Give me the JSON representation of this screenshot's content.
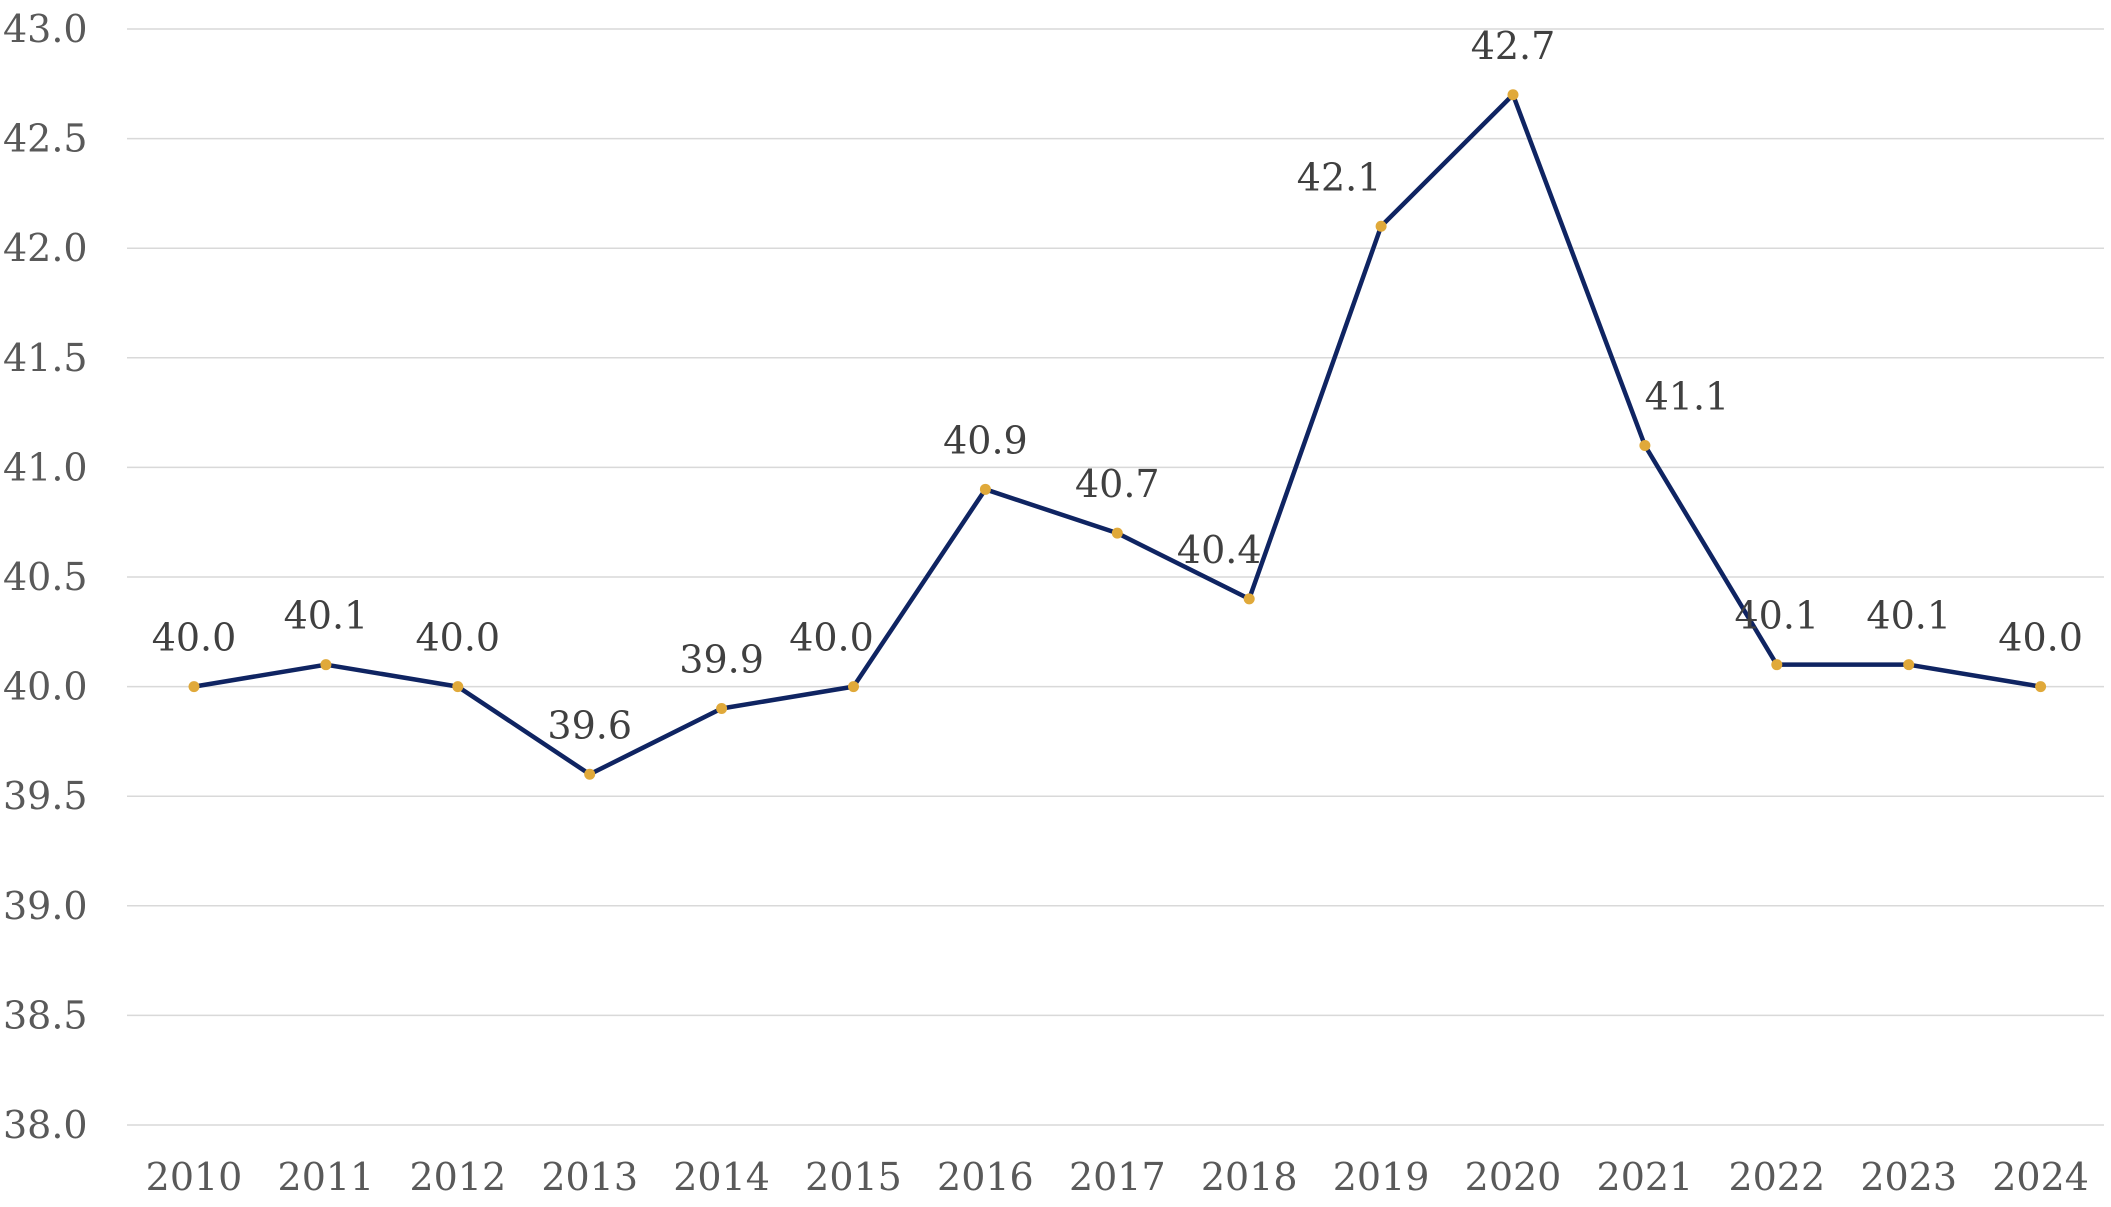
{
  "chart_data": {
    "type": "line",
    "title": "",
    "xlabel": "",
    "ylabel": "",
    "categories": [
      "2010",
      "2011",
      "2012",
      "2013",
      "2014",
      "2015",
      "2016",
      "2017",
      "2018",
      "2019",
      "2020",
      "2021",
      "2022",
      "2023",
      "2024"
    ],
    "series": [
      {
        "values": [
          40.0,
          40.1,
          40.0,
          39.6,
          39.9,
          40.0,
          40.9,
          40.7,
          40.4,
          42.1,
          42.7,
          41.1,
          40.1,
          40.1,
          40.0
        ],
        "data_labels": [
          "40.0",
          "40.1",
          "40.0",
          "39.6",
          "39.9",
          "40.0",
          "40.9",
          "40.7",
          "40.4",
          "42.1",
          "42.7",
          "41.1",
          "40.1",
          "40.1",
          "40.0"
        ]
      }
    ],
    "ylim": [
      38.0,
      43.0
    ],
    "y_ticks": [
      38.0,
      38.5,
      39.0,
      39.5,
      40.0,
      40.5,
      41.0,
      41.5,
      42.0,
      42.5,
      43.0
    ],
    "y_tick_labels": [
      "38.0",
      "38.5",
      "39.0",
      "39.5",
      "40.0",
      "40.5",
      "41.0",
      "41.5",
      "42.0",
      "42.5",
      "43.0"
    ],
    "grid": true,
    "legend": "none",
    "colors": {
      "line": "#0f2462",
      "marker": "#e0a93a",
      "grid": "#d9d9d9"
    }
  }
}
